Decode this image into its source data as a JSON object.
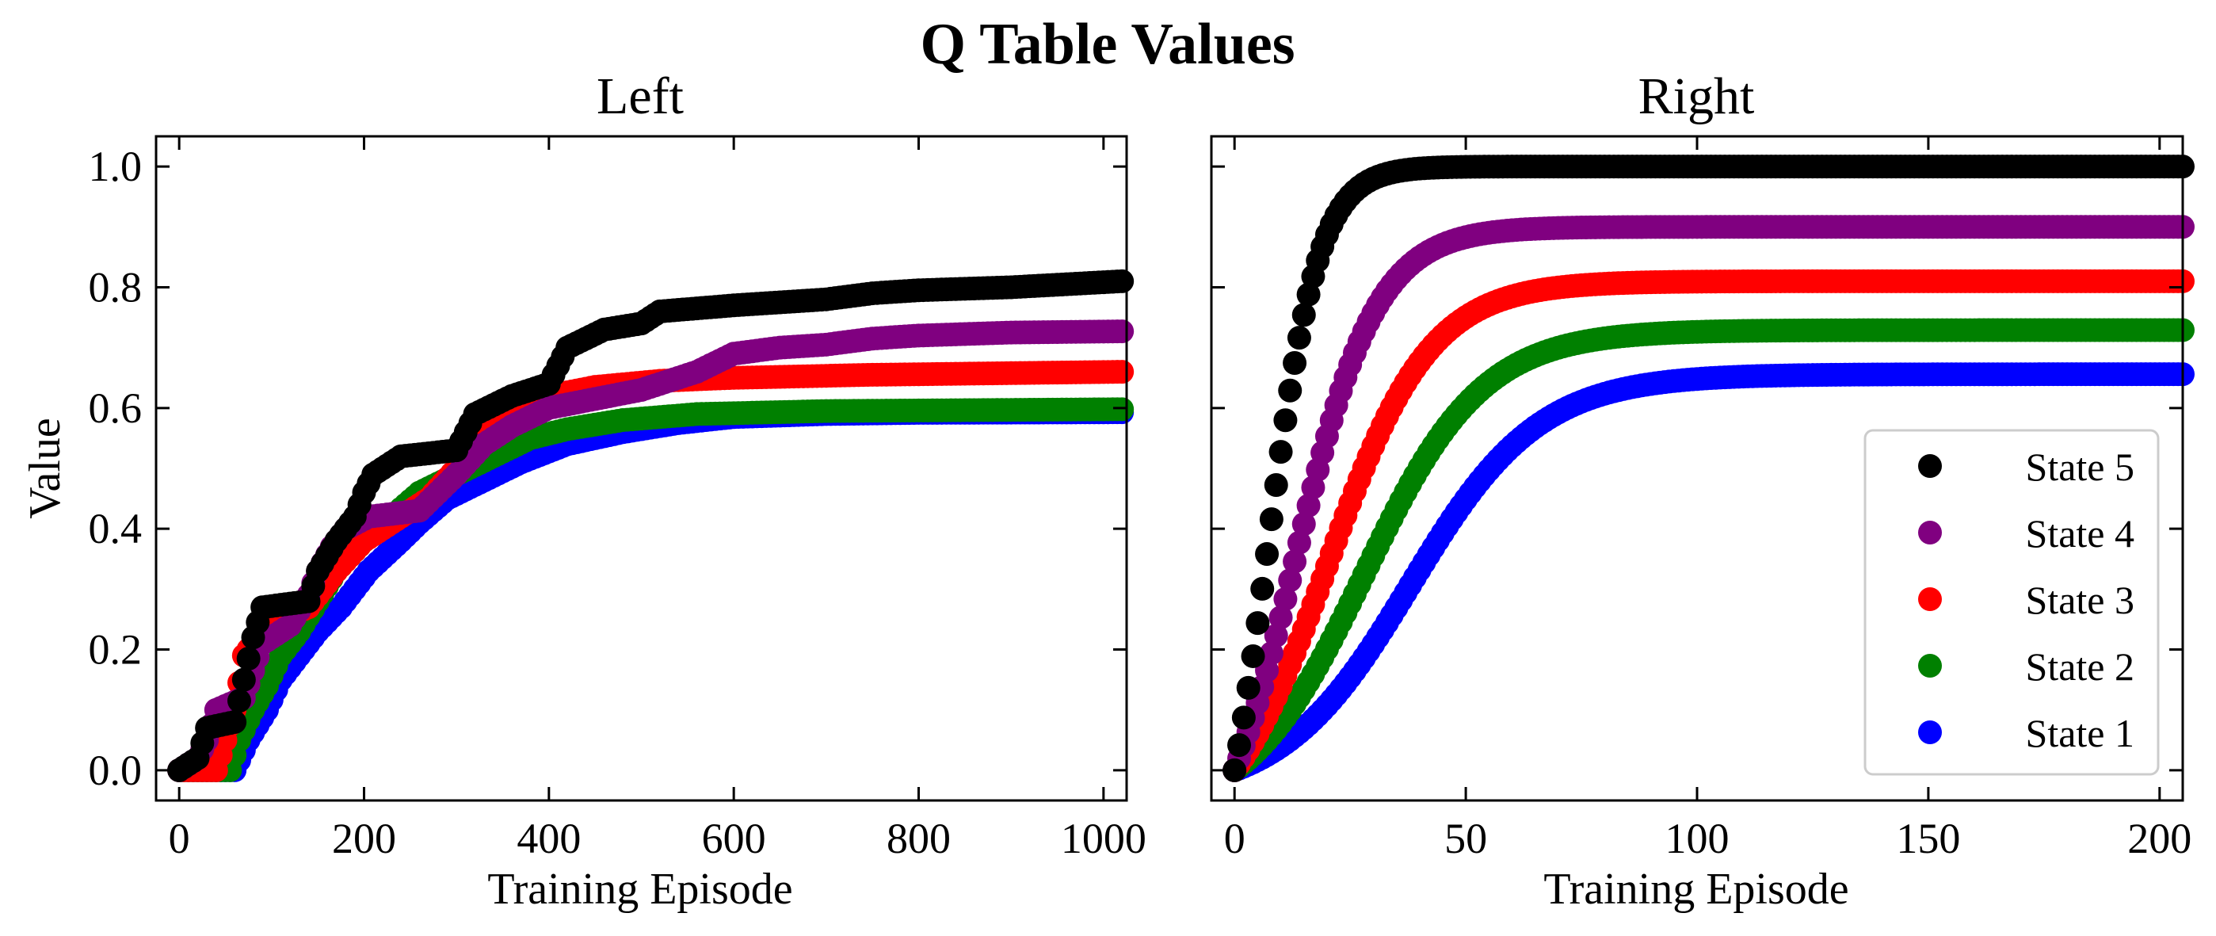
{
  "figure": {
    "title": "Q Table Values"
  },
  "chart_data": [
    {
      "type": "scatter",
      "title": "Left",
      "xlabel": "Training Episode",
      "ylabel": "Value",
      "xlim": [
        -25,
        1025
      ],
      "ylim": [
        -0.05,
        1.05
      ],
      "xticks": [
        0,
        200,
        400,
        600,
        800,
        1000
      ],
      "xtick_labels": [
        "0",
        "200",
        "400",
        "600",
        "800",
        "1000"
      ],
      "yticks": [
        0.0,
        0.2,
        0.4,
        0.6,
        0.8,
        1.0
      ],
      "ytick_labels": [
        "0.0",
        "0.2",
        "0.4",
        "0.6",
        "0.8",
        "1.0"
      ],
      "grid": false,
      "marker_spacing": 5,
      "series": [
        {
          "name": "State 1",
          "color": "#0000ff",
          "points": [
            [
              0,
              0
            ],
            [
              60,
              0
            ],
            [
              75,
              0.05
            ],
            [
              95,
              0.1
            ],
            [
              110,
              0.15
            ],
            [
              130,
              0.19
            ],
            [
              150,
              0.23
            ],
            [
              175,
              0.27
            ],
            [
              205,
              0.33
            ],
            [
              240,
              0.38
            ],
            [
              260,
              0.41
            ],
            [
              290,
              0.45
            ],
            [
              330,
              0.48
            ],
            [
              370,
              0.51
            ],
            [
              420,
              0.54
            ],
            [
              480,
              0.56
            ],
            [
              540,
              0.575
            ],
            [
              600,
              0.585
            ],
            [
              700,
              0.59
            ],
            [
              800,
              0.592
            ],
            [
              1020,
              0.593
            ]
          ]
        },
        {
          "name": "State 2",
          "color": "#008000",
          "points": [
            [
              0,
              0
            ],
            [
              55,
              0
            ],
            [
              65,
              0.05
            ],
            [
              80,
              0.1
            ],
            [
              95,
              0.14
            ],
            [
              110,
              0.19
            ],
            [
              130,
              0.23
            ],
            [
              150,
              0.28
            ],
            [
              170,
              0.33
            ],
            [
              200,
              0.38
            ],
            [
              230,
              0.42
            ],
            [
              260,
              0.46
            ],
            [
              300,
              0.49
            ],
            [
              340,
              0.52
            ],
            [
              380,
              0.55
            ],
            [
              420,
              0.565
            ],
            [
              480,
              0.58
            ],
            [
              560,
              0.59
            ],
            [
              700,
              0.595
            ],
            [
              1020,
              0.598
            ]
          ]
        },
        {
          "name": "State 3",
          "color": "#ff0000",
          "points": [
            [
              0,
              0
            ],
            [
              40,
              0
            ],
            [
              50,
              0.05
            ],
            [
              60,
              0.1
            ],
            [
              70,
              0.19
            ],
            [
              90,
              0.23
            ],
            [
              110,
              0.25
            ],
            [
              140,
              0.27
            ],
            [
              170,
              0.33
            ],
            [
              200,
              0.38
            ],
            [
              240,
              0.42
            ],
            [
              270,
              0.45
            ],
            [
              300,
              0.5
            ],
            [
              330,
              0.55
            ],
            [
              360,
              0.6
            ],
            [
              400,
              0.62
            ],
            [
              450,
              0.635
            ],
            [
              520,
              0.645
            ],
            [
              600,
              0.65
            ],
            [
              750,
              0.655
            ],
            [
              1020,
              0.66
            ]
          ]
        },
        {
          "name": "State 4",
          "color": "#800080",
          "points": [
            [
              0,
              0
            ],
            [
              20,
              0.02
            ],
            [
              30,
              0.05
            ],
            [
              40,
              0.1
            ],
            [
              70,
              0.12
            ],
            [
              90,
              0.21
            ],
            [
              120,
              0.24
            ],
            [
              140,
              0.29
            ],
            [
              150,
              0.33
            ],
            [
              165,
              0.37
            ],
            [
              180,
              0.4
            ],
            [
              205,
              0.42
            ],
            [
              260,
              0.43
            ],
            [
              300,
              0.49
            ],
            [
              330,
              0.54
            ],
            [
              360,
              0.57
            ],
            [
              400,
              0.6
            ],
            [
              450,
              0.615
            ],
            [
              500,
              0.63
            ],
            [
              560,
              0.66
            ],
            [
              600,
              0.69
            ],
            [
              650,
              0.7
            ],
            [
              700,
              0.705
            ],
            [
              750,
              0.715
            ],
            [
              800,
              0.72
            ],
            [
              900,
              0.725
            ],
            [
              1020,
              0.727
            ]
          ]
        },
        {
          "name": "State 5",
          "color": "#000000",
          "points": [
            [
              0,
              0
            ],
            [
              20,
              0.02
            ],
            [
              30,
              0.07
            ],
            [
              60,
              0.08
            ],
            [
              70,
              0.15
            ],
            [
              80,
              0.22
            ],
            [
              90,
              0.27
            ],
            [
              140,
              0.28
            ],
            [
              150,
              0.33
            ],
            [
              170,
              0.38
            ],
            [
              190,
              0.42
            ],
            [
              200,
              0.46
            ],
            [
              210,
              0.49
            ],
            [
              240,
              0.52
            ],
            [
              300,
              0.53
            ],
            [
              320,
              0.59
            ],
            [
              360,
              0.62
            ],
            [
              400,
              0.64
            ],
            [
              420,
              0.7
            ],
            [
              460,
              0.73
            ],
            [
              500,
              0.74
            ],
            [
              520,
              0.76
            ],
            [
              600,
              0.77
            ],
            [
              650,
              0.775
            ],
            [
              700,
              0.78
            ],
            [
              750,
              0.79
            ],
            [
              800,
              0.795
            ],
            [
              900,
              0.8
            ],
            [
              1020,
              0.81
            ]
          ]
        }
      ]
    },
    {
      "type": "scatter",
      "title": "Right",
      "xlabel": "Training Episode",
      "ylabel": "",
      "xlim": [
        -5,
        205
      ],
      "ylim": [
        -0.05,
        1.05
      ],
      "xticks": [
        0,
        50,
        100,
        150,
        200
      ],
      "xtick_labels": [
        "0",
        "50",
        "100",
        "150",
        "200"
      ],
      "yticks": [
        0.0,
        0.2,
        0.4,
        0.6,
        0.8,
        1.0
      ],
      "grid": false,
      "legend": "lower-right",
      "series": [
        {
          "name": "State 1",
          "color": "#0000ff",
          "asymptote": 0.656,
          "growth": 2.5,
          "delay": 38
        },
        {
          "name": "State 2",
          "color": "#008000",
          "asymptote": 0.729,
          "growth": 2.3,
          "delay": 28
        },
        {
          "name": "State 3",
          "color": "#ff0000",
          "asymptote": 0.81,
          "growth": 2.0,
          "delay": 20
        },
        {
          "name": "State 4",
          "color": "#800080",
          "asymptote": 0.9,
          "growth": 1.6,
          "delay": 13
        },
        {
          "name": "State 5",
          "color": "#000000",
          "asymptote": 1.0,
          "growth": 1.0,
          "delay": 7
        }
      ],
      "legend_order": [
        "State 5",
        "State 4",
        "State 3",
        "State 2",
        "State 1"
      ]
    }
  ]
}
